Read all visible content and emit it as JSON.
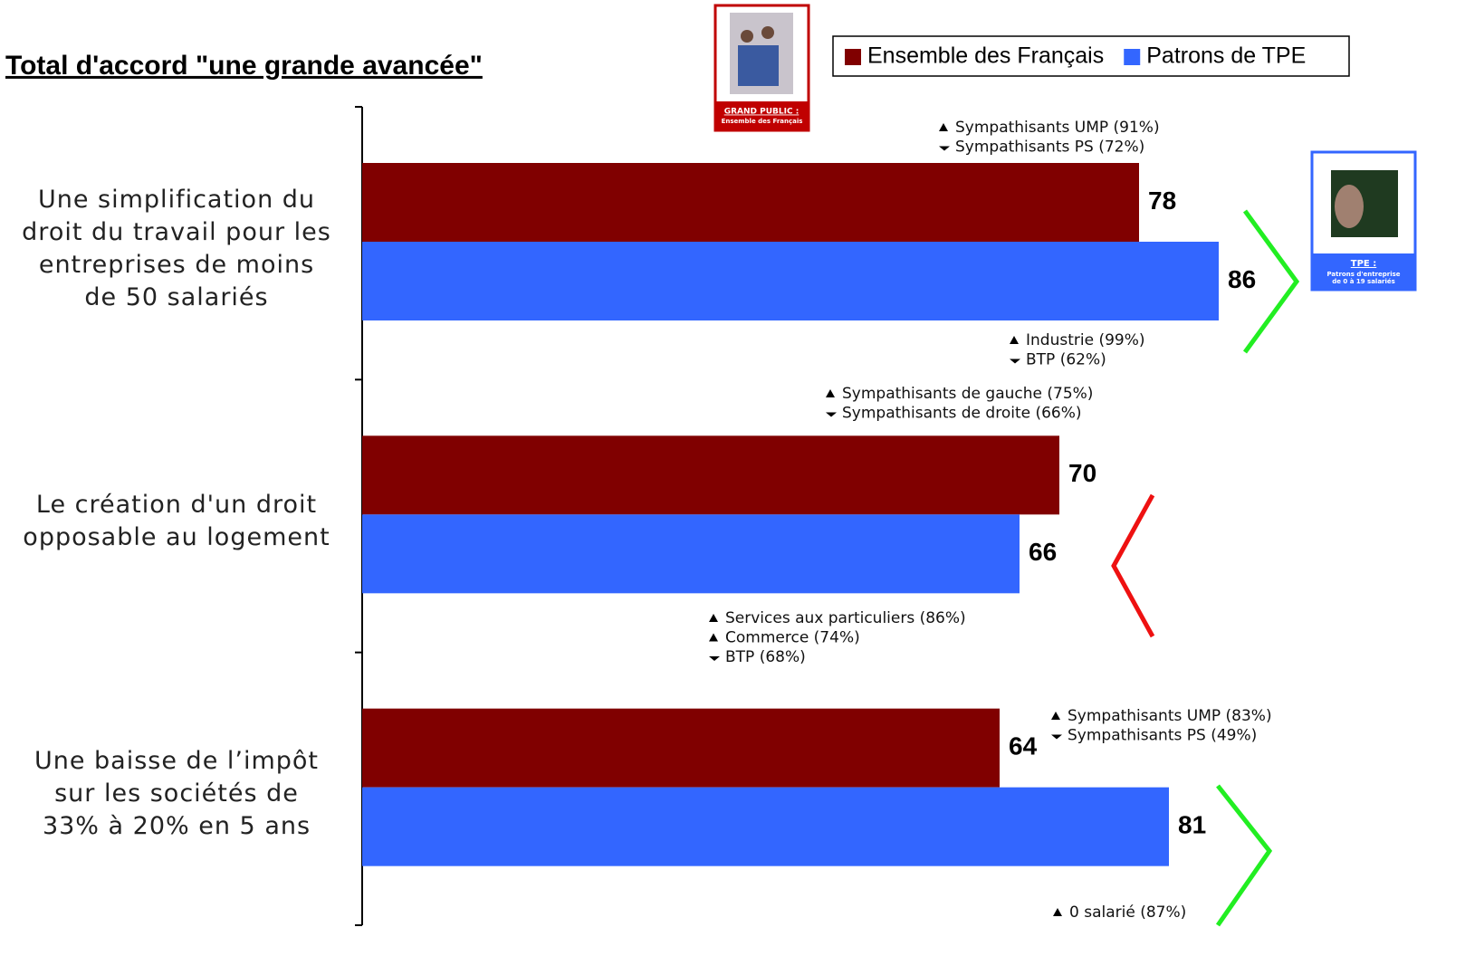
{
  "chart_data": {
    "type": "hbar",
    "title": "Total d'accord \"une grande avancée\"",
    "categories": [
      "Une simplification du\ndroit du travail pour les\nentreprises de moins\nde 50 salariés",
      "Le création d'un droit\nopposable au logement",
      "Une baisse de l’impôt\nsur les sociétés de\n33% à 20% en 5 ans"
    ],
    "series": [
      {
        "name": "Ensemble des Français",
        "color": "#800000",
        "values": [
          78,
          70,
          64
        ]
      },
      {
        "name": "Patrons de TPE",
        "color": "#3366ff",
        "values": [
          86,
          66,
          81
        ]
      }
    ],
    "xlim": [
      0,
      100
    ],
    "annotations": [
      {
        "items": [
          {
            "text": "Sympathisants UMP (91%)",
            "dir": "up"
          },
          {
            "text": "Sympathisants PS (72%)",
            "dir": "down"
          }
        ]
      },
      {
        "items": [
          {
            "text": "Industrie (99%)",
            "dir": "up"
          },
          {
            "text": "BTP (62%)",
            "dir": "down"
          }
        ]
      },
      {
        "items": [
          {
            "text": "Sympathisants de gauche (75%)",
            "dir": "up"
          },
          {
            "text": "Sympathisants de droite (66%)",
            "dir": "down"
          }
        ]
      },
      {
        "items": [
          {
            "text": "Services aux particuliers (86%)",
            "dir": "up"
          },
          {
            "text": "Commerce (74%)",
            "dir": "up"
          },
          {
            "text": "BTP (68%)",
            "dir": "down"
          }
        ]
      },
      {
        "items": [
          {
            "text": "Sympathisants UMP (83%)",
            "dir": "up"
          },
          {
            "text": "Sympathisants PS (49%)",
            "dir": "down"
          }
        ]
      },
      {
        "items": [
          {
            "text": "0 salarié (87%)",
            "dir": "up"
          }
        ]
      }
    ],
    "badges": [
      {
        "title": "GRAND PUBLIC :",
        "subtitle": "Ensemble des Français"
      },
      {
        "title": "TPE :",
        "subtitle": "Patrons d'entreprise\nde 0 à 19 salariés"
      }
    ]
  }
}
